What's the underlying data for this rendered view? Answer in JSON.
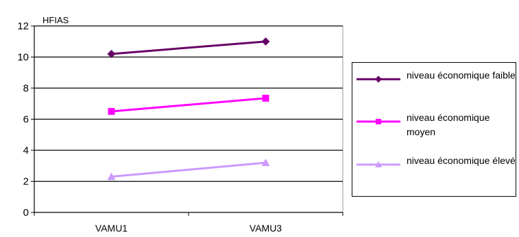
{
  "chart_data": {
    "type": "line",
    "ylabel": "HFIAS",
    "categories": [
      "VAMU1",
      "VAMU3"
    ],
    "ylim": [
      0,
      12
    ],
    "yticks": [
      0,
      2,
      4,
      6,
      8,
      10,
      12
    ],
    "grid": true,
    "legend_position": "right",
    "series": [
      {
        "name": "niveau économique faible",
        "values": [
          10.2,
          11.0
        ],
        "color": "#660066",
        "marker": "diamond"
      },
      {
        "name": "niveau économique moyen",
        "values": [
          6.5,
          7.35
        ],
        "color": "#ff00ff",
        "marker": "square"
      },
      {
        "name": "niveau économique élevé",
        "values": [
          2.3,
          3.2
        ],
        "color": "#cc99ff",
        "marker": "triangle"
      }
    ]
  }
}
